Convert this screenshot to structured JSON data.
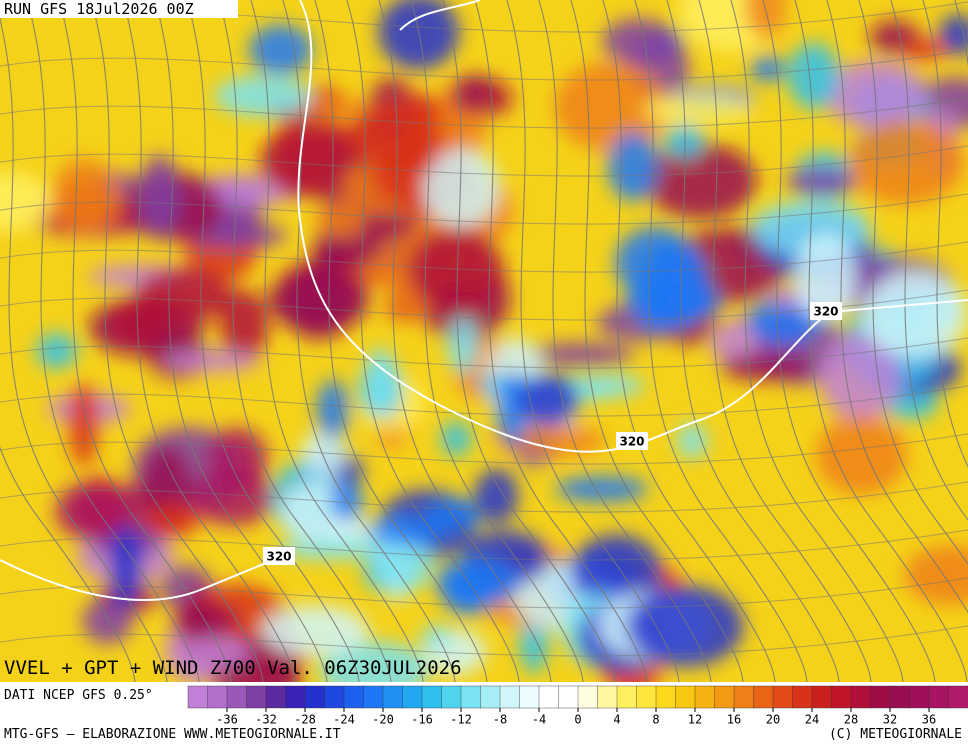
{
  "header": {
    "run": "RUN GFS 18Jul2026 00Z"
  },
  "map": {
    "title": "VVEL + GPT + WIND Z700 Val. 06Z30JUL2026",
    "contour_labels": [
      "320",
      "320",
      "320"
    ]
  },
  "colorbar": {
    "source": "DATI NCEP GFS 0.25°",
    "ticks": [
      -36,
      -32,
      -28,
      -24,
      -20,
      -16,
      -12,
      -8,
      -4,
      0,
      4,
      8,
      12,
      16,
      20,
      24,
      28,
      32,
      36
    ]
  },
  "footer": {
    "left": "MTG-GFS — ELABORAZIONE WWW.METEOGIORNALE.IT",
    "right": "(C) METEOGIORNALE"
  }
}
